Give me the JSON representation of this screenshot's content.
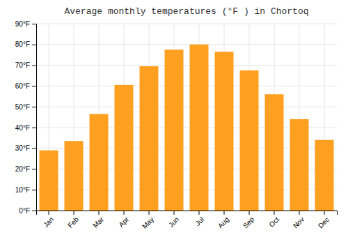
{
  "chart_data": {
    "type": "bar",
    "title": "Average monthly temperatures (°F ) in Chortoq",
    "categories": [
      "Jan",
      "Feb",
      "Mar",
      "Apr",
      "May",
      "Jun",
      "Jul",
      "Aug",
      "Sep",
      "Oct",
      "Nov",
      "Dec"
    ],
    "values": [
      29,
      33.5,
      46.5,
      60.5,
      69.5,
      77.5,
      80,
      76.5,
      67.5,
      56,
      44,
      34
    ],
    "color": "#FFA020",
    "ylim": [
      0,
      90
    ],
    "yticks": [
      {
        "value": 0,
        "label": "0°F"
      },
      {
        "value": 10,
        "label": "10°F"
      },
      {
        "value": 20,
        "label": "20°F"
      },
      {
        "value": 30,
        "label": "30°F"
      },
      {
        "value": 40,
        "label": "40°F"
      },
      {
        "value": 50,
        "label": "50°F"
      },
      {
        "value": 60,
        "label": "60°F"
      },
      {
        "value": 70,
        "label": "70°F"
      },
      {
        "value": 80,
        "label": "80°F"
      },
      {
        "value": 90,
        "label": "90°F"
      }
    ],
    "grid": true
  }
}
